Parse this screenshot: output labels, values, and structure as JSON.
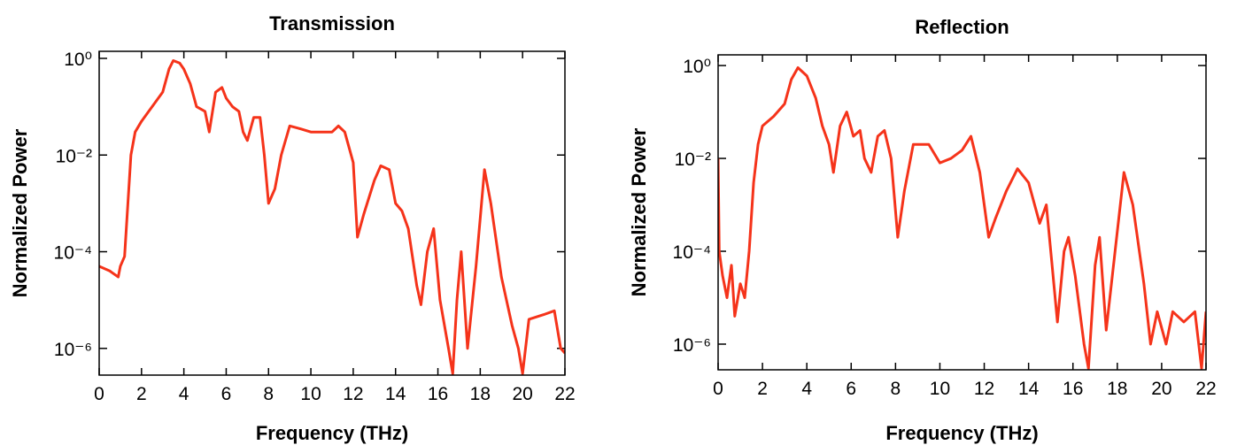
{
  "chart_data": [
    {
      "type": "line",
      "title": "Transmission",
      "xlabel": "Frequency (THz)",
      "ylabel": "Normalized Power",
      "log_y": true,
      "color": "#f5331a",
      "xlim": [
        0,
        22
      ],
      "xticks": [
        0,
        2,
        4,
        6,
        8,
        10,
        12,
        14,
        16,
        18,
        20,
        22
      ],
      "ylim": [
        2.8e-07,
        1.4
      ],
      "yticks": [
        {
          "value": 1,
          "label": "10⁰"
        },
        {
          "value": 0.01,
          "label": "10⁻²"
        },
        {
          "value": 0.0001,
          "label": "10⁻⁴"
        },
        {
          "value": 1e-06,
          "label": "10⁻⁶"
        }
      ],
      "x": [
        0,
        0.5,
        0.9,
        1.0,
        1.2,
        1.5,
        1.7,
        2.0,
        2.5,
        3.0,
        3.3,
        3.5,
        3.8,
        4.0,
        4.3,
        4.6,
        5.0,
        5.2,
        5.5,
        5.8,
        6.0,
        6.3,
        6.6,
        6.8,
        7.0,
        7.3,
        7.6,
        7.8,
        8.0,
        8.3,
        8.6,
        9.0,
        9.5,
        10.0,
        10.5,
        11.0,
        11.3,
        11.6,
        12.0,
        12.2,
        12.5,
        13.0,
        13.3,
        13.7,
        14.0,
        14.3,
        14.6,
        15.0,
        15.2,
        15.5,
        15.8,
        16.1,
        16.5,
        16.7,
        16.9,
        17.1,
        17.4,
        17.8,
        18.2,
        18.5,
        19.0,
        19.5,
        19.8,
        20.0,
        20.3,
        21.0,
        21.5,
        21.8,
        22.0
      ],
      "series": [
        {
          "name": "Transmission",
          "values": [
            5e-05,
            4e-05,
            3e-05,
            5e-05,
            8e-05,
            0.01,
            0.03,
            0.05,
            0.1,
            0.2,
            0.6,
            0.9,
            0.8,
            0.6,
            0.3,
            0.1,
            0.08,
            0.03,
            0.2,
            0.25,
            0.15,
            0.1,
            0.08,
            0.03,
            0.02,
            0.06,
            0.06,
            0.01,
            0.001,
            0.002,
            0.01,
            0.04,
            0.035,
            0.03,
            0.03,
            0.03,
            0.04,
            0.03,
            0.007,
            0.0002,
            0.0006,
            0.003,
            0.006,
            0.005,
            0.001,
            0.0007,
            0.0003,
            2e-05,
            8e-06,
            0.0001,
            0.0003,
            1e-05,
            1e-06,
            3e-07,
            1e-05,
            0.0001,
            1e-06,
            5e-05,
            0.005,
            0.001,
            3e-05,
            3e-06,
            1e-06,
            3e-07,
            4e-06,
            5e-06,
            6e-06,
            1e-06,
            8e-07
          ]
        }
      ]
    },
    {
      "type": "line",
      "title": "Reflection",
      "xlabel": "Frequency (THz)",
      "ylabel": "Normalized Power",
      "log_y": true,
      "color": "#f5331a",
      "xlim": [
        0,
        22
      ],
      "xticks": [
        0,
        2,
        4,
        6,
        8,
        10,
        12,
        14,
        16,
        18,
        20,
        22
      ],
      "ylim": [
        2.8e-07,
        1.7
      ],
      "yticks": [
        {
          "value": 1,
          "label": "10⁰"
        },
        {
          "value": 0.01,
          "label": "10⁻²"
        },
        {
          "value": 0.0001,
          "label": "10⁻⁴"
        },
        {
          "value": 1e-06,
          "label": "10⁻⁶"
        }
      ],
      "x": [
        0,
        0.05,
        0.2,
        0.4,
        0.6,
        0.75,
        1.0,
        1.2,
        1.4,
        1.6,
        1.8,
        2.0,
        2.5,
        3.0,
        3.3,
        3.6,
        4.0,
        4.4,
        4.7,
        5.0,
        5.2,
        5.5,
        5.8,
        6.1,
        6.4,
        6.6,
        6.9,
        7.2,
        7.5,
        7.8,
        8.1,
        8.4,
        8.8,
        9.5,
        10.0,
        10.5,
        11.0,
        11.4,
        11.8,
        12.2,
        12.5,
        13.0,
        13.5,
        14.0,
        14.5,
        14.8,
        15.0,
        15.3,
        15.6,
        15.8,
        16.1,
        16.5,
        16.7,
        17.0,
        17.2,
        17.5,
        17.9,
        18.3,
        18.7,
        19.2,
        19.5,
        19.8,
        20.2,
        20.5,
        21.0,
        21.5,
        21.8,
        22.0
      ],
      "series": [
        {
          "name": "Reflection",
          "values": [
            0.01,
            0.0001,
            3e-05,
            1e-05,
            5e-05,
            4e-06,
            2e-05,
            1e-05,
            0.0001,
            0.003,
            0.02,
            0.05,
            0.08,
            0.15,
            0.5,
            0.9,
            0.6,
            0.2,
            0.05,
            0.02,
            0.005,
            0.05,
            0.1,
            0.03,
            0.04,
            0.01,
            0.005,
            0.03,
            0.04,
            0.01,
            0.0002,
            0.002,
            0.02,
            0.02,
            0.008,
            0.01,
            0.015,
            0.03,
            0.005,
            0.0002,
            0.0005,
            0.002,
            0.006,
            0.003,
            0.0004,
            0.001,
            0.0001,
            3e-06,
            0.0001,
            0.0002,
            3e-05,
            1e-06,
            3e-07,
            5e-05,
            0.0002,
            2e-06,
            0.0001,
            0.005,
            0.001,
            2e-05,
            1e-06,
            5e-06,
            1e-06,
            5e-06,
            3e-06,
            5e-06,
            3e-07,
            5e-06
          ]
        }
      ]
    }
  ]
}
